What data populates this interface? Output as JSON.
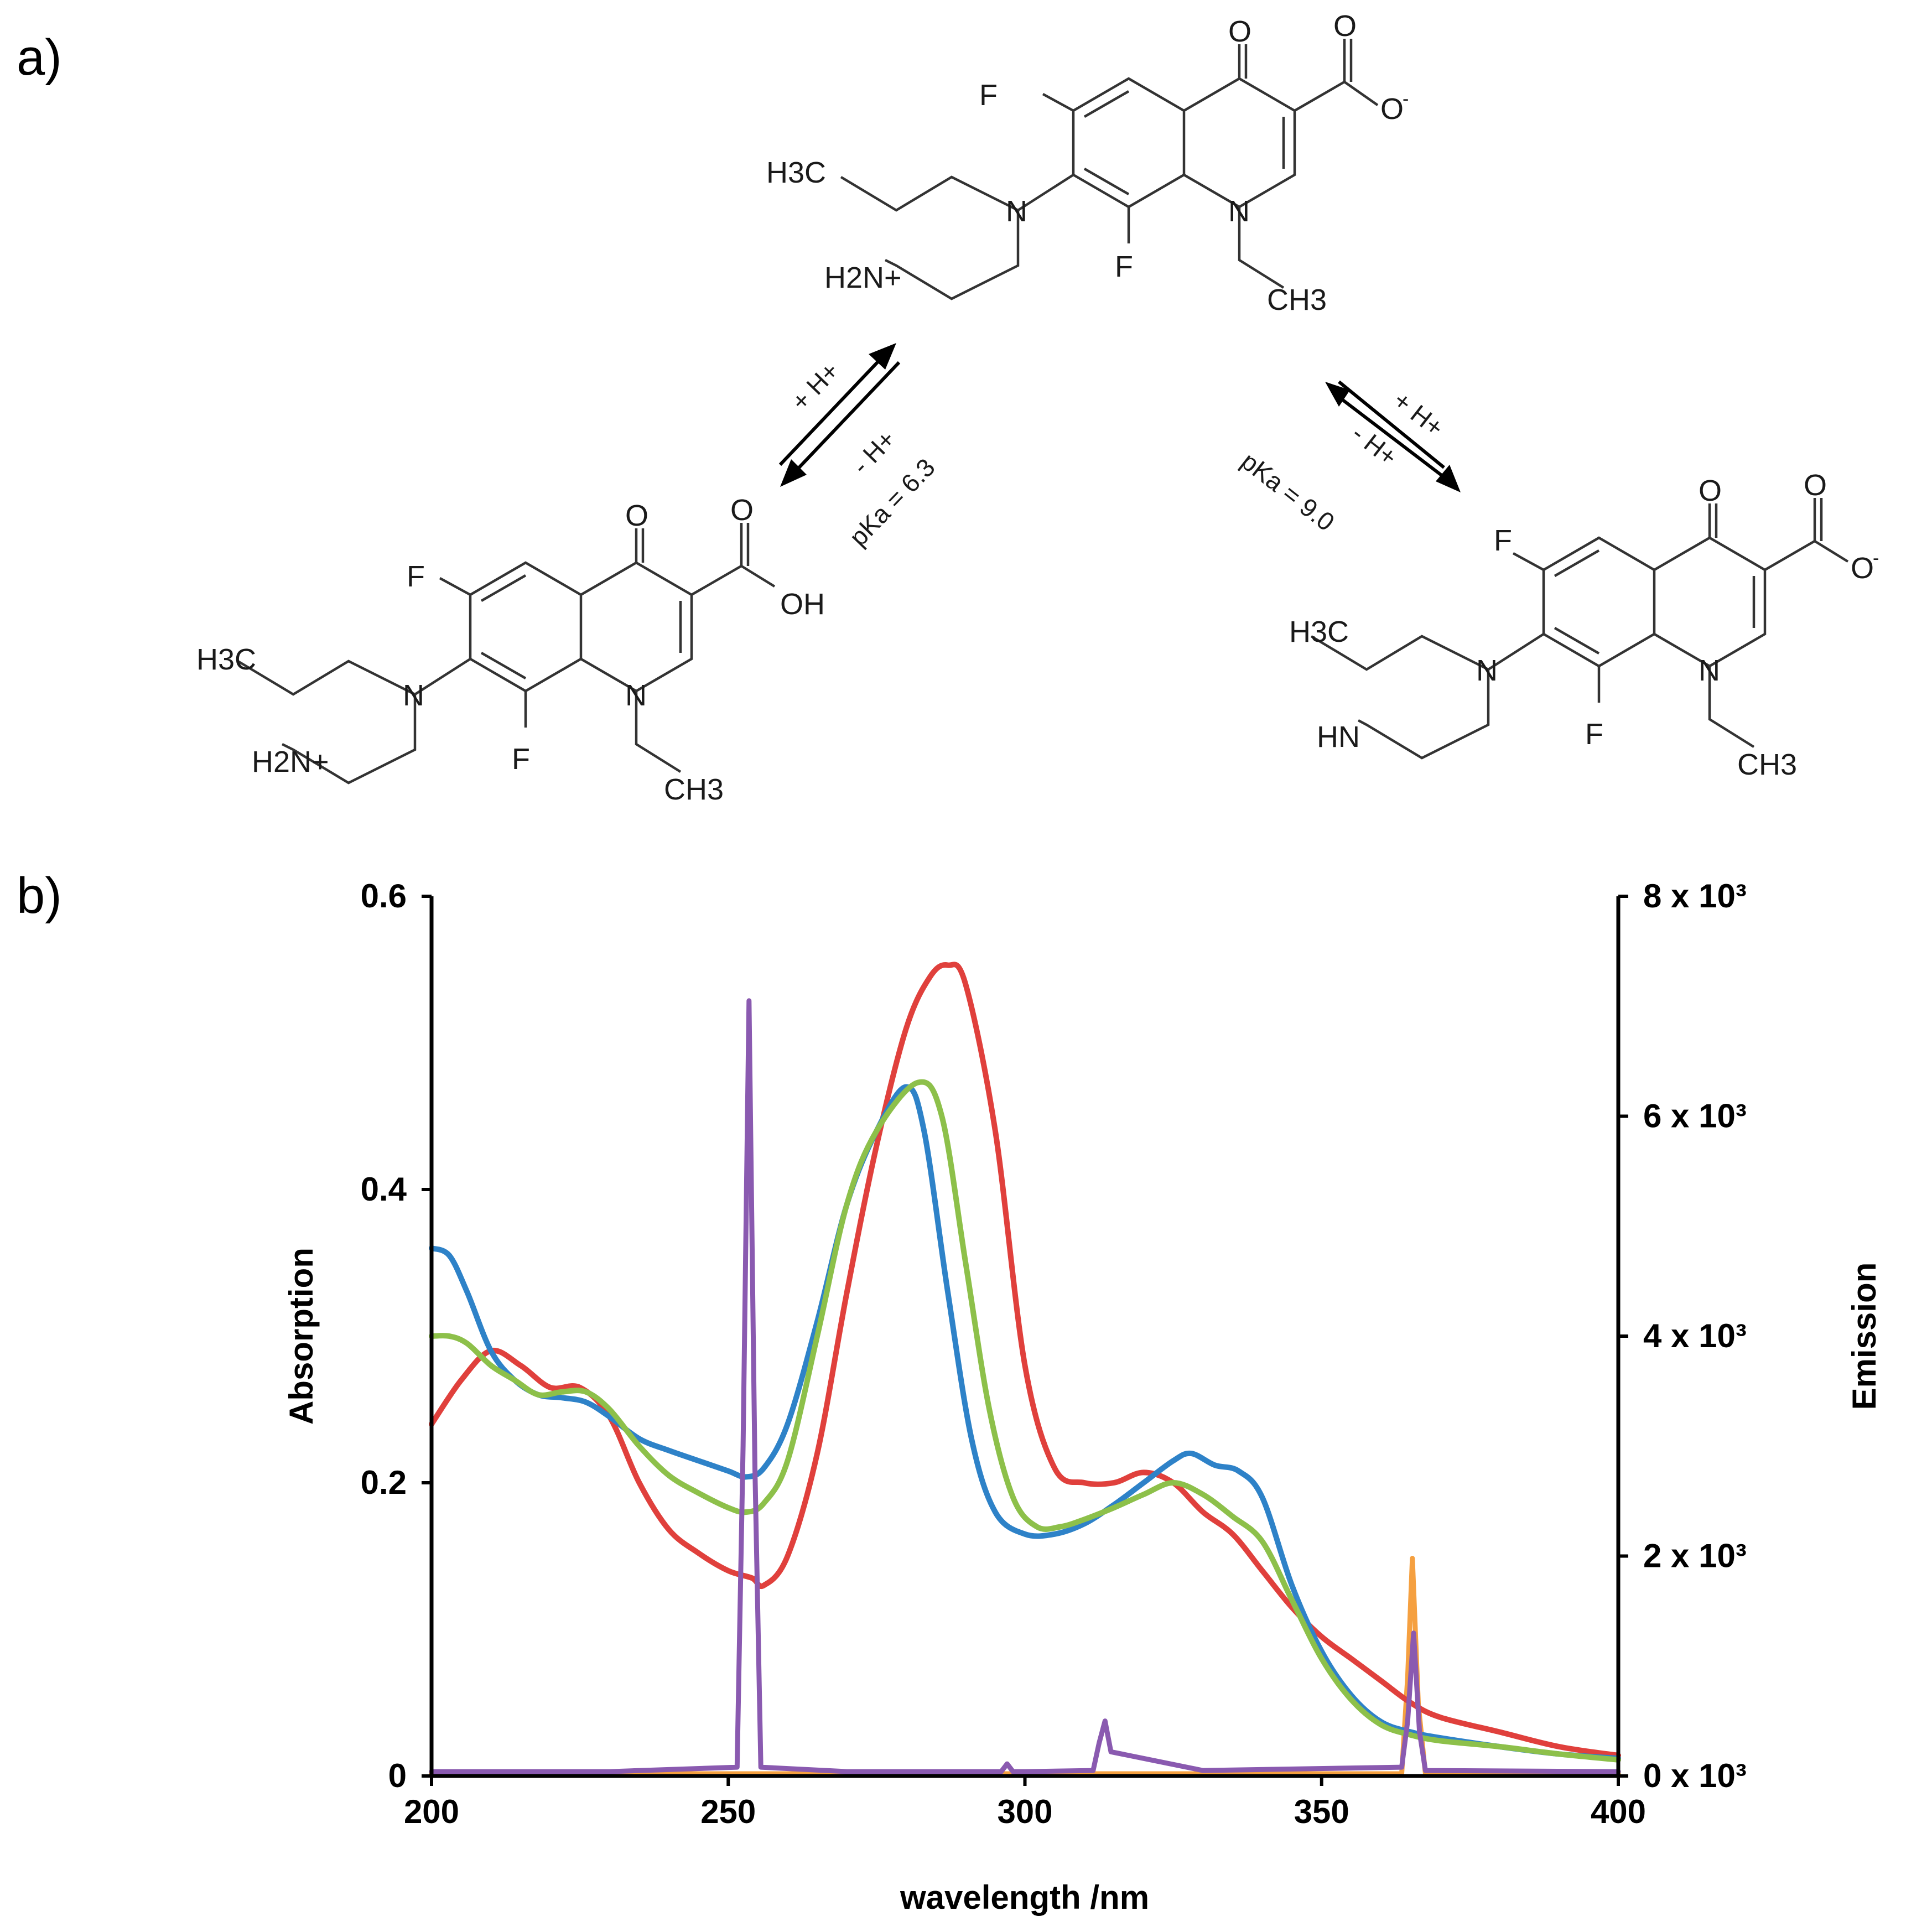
{
  "panel_a_label": "a)",
  "panel_b_label": "b)",
  "structures": {
    "center": {
      "F_top": "F",
      "F_bottom": "F",
      "O_keto": "O",
      "O_carbox": "O",
      "O_minus": "O",
      "charge_minus": "-",
      "N_ring": "N",
      "N_pip": "N",
      "H3C": "H3C",
      "H2N_plus": "H2N+",
      "CH3": "CH3"
    },
    "left": {
      "F_top": "F",
      "F_bottom": "F",
      "O_keto": "O",
      "O_carbox": "O",
      "OH": "OH",
      "N_ring": "N",
      "N_pip": "N",
      "H3C": "H3C",
      "H2N_plus": "H2N+",
      "CH3": "CH3"
    },
    "right": {
      "F_top": "F",
      "F_bottom": "F",
      "O_keto": "O",
      "O_carbox": "O",
      "O_minus": "O",
      "charge_minus": "-",
      "N_ring": "N",
      "N_pip": "N",
      "H3C": "H3C",
      "HN": "HN",
      "CH3": "CH3"
    }
  },
  "equilibria": [
    {
      "forward": "+ H+",
      "backward": "- H+",
      "pka": "pKa = 6.3"
    },
    {
      "forward": "+ H+",
      "backward": "- H+",
      "pka": "pKa = 9.0"
    }
  ],
  "chart_data": {
    "type": "line",
    "xlabel": "wavelength /nm",
    "ylabel": "Absorption",
    "y2label": "Emission",
    "xlim": [
      200,
      400
    ],
    "ylim": [
      0,
      0.6
    ],
    "y2lim": [
      0,
      8000
    ],
    "x_ticks": [
      "200",
      "250",
      "300",
      "350",
      "400"
    ],
    "y_ticks": [
      "0",
      "0.2",
      "0.4",
      "0.6"
    ],
    "y2_ticks": [
      "0 x 10³",
      "2 x 10³",
      "4 x 10³",
      "6 x 10³",
      "8 x 10³"
    ],
    "grid": false,
    "colors": {
      "blue": "#2e82c8",
      "red": "#e0403c",
      "green": "#8dc04a",
      "purple": "#8a5ab0",
      "orange": "#f5a040"
    },
    "series": [
      {
        "color": "blue",
        "axis": "left",
        "x": [
          200,
          203,
          206,
          210,
          214,
          218,
          222,
          226,
          230,
          235,
          240,
          245,
          250,
          253,
          256,
          260,
          265,
          270,
          275,
          280,
          283,
          287,
          291,
          295,
          300,
          305,
          310,
          315,
          320,
          325,
          328,
          332,
          336,
          340,
          345,
          350,
          355,
          360,
          365,
          370,
          380,
          390,
          400
        ],
        "y": [
          0.36,
          0.355,
          0.33,
          0.29,
          0.27,
          0.26,
          0.258,
          0.255,
          0.245,
          0.23,
          0.222,
          0.215,
          0.208,
          0.204,
          0.21,
          0.24,
          0.31,
          0.39,
          0.44,
          0.47,
          0.44,
          0.33,
          0.23,
          0.18,
          0.165,
          0.165,
          0.172,
          0.185,
          0.2,
          0.215,
          0.22,
          0.212,
          0.208,
          0.19,
          0.13,
          0.085,
          0.055,
          0.037,
          0.03,
          0.026,
          0.02,
          0.015,
          0.012
        ]
      },
      {
        "color": "red",
        "axis": "left",
        "x": [
          200,
          205,
          210,
          215,
          220,
          225,
          230,
          235,
          240,
          245,
          250,
          254,
          256,
          260,
          265,
          270,
          275,
          280,
          284,
          287,
          290,
          295,
          300,
          305,
          310,
          315,
          320,
          325,
          330,
          335,
          340,
          345,
          350,
          355,
          360,
          365,
          370,
          380,
          390,
          400
        ],
        "y": [
          0.24,
          0.27,
          0.29,
          0.28,
          0.265,
          0.265,
          0.245,
          0.2,
          0.168,
          0.152,
          0.14,
          0.135,
          0.13,
          0.15,
          0.22,
          0.33,
          0.43,
          0.51,
          0.545,
          0.553,
          0.54,
          0.44,
          0.28,
          0.21,
          0.2,
          0.2,
          0.207,
          0.2,
          0.18,
          0.165,
          0.14,
          0.115,
          0.095,
          0.08,
          0.065,
          0.05,
          0.04,
          0.03,
          0.02,
          0.014
        ]
      },
      {
        "color": "green",
        "axis": "left",
        "x": [
          200,
          203,
          206,
          210,
          214,
          218,
          222,
          226,
          230,
          235,
          240,
          245,
          250,
          253,
          256,
          260,
          265,
          270,
          275,
          282,
          286,
          290,
          294,
          298,
          302,
          306,
          310,
          315,
          320,
          325,
          330,
          335,
          340,
          345,
          350,
          355,
          360,
          365,
          370,
          380,
          390,
          400
        ],
        "y": [
          0.3,
          0.3,
          0.295,
          0.28,
          0.27,
          0.26,
          0.262,
          0.262,
          0.25,
          0.225,
          0.205,
          0.193,
          0.183,
          0.18,
          0.186,
          0.215,
          0.3,
          0.39,
          0.44,
          0.473,
          0.45,
          0.35,
          0.25,
          0.19,
          0.17,
          0.17,
          0.175,
          0.183,
          0.192,
          0.2,
          0.192,
          0.177,
          0.16,
          0.12,
          0.08,
          0.052,
          0.035,
          0.028,
          0.024,
          0.02,
          0.015,
          0.011
        ]
      },
      {
        "color": "purple",
        "axis": "right",
        "x": [
          200,
          230,
          251.5,
          252.5,
          253.5,
          254.5,
          255.5,
          270,
          296,
          297,
          298,
          300,
          311.5,
          312.5,
          313.5,
          314.5,
          330,
          363.5,
          364.5,
          365.5,
          366.5,
          367.5,
          400
        ],
        "y": [
          40,
          40,
          80,
          3000,
          7050,
          2800,
          80,
          40,
          40,
          110,
          40,
          40,
          50,
          300,
          500,
          220,
          50,
          80,
          500,
          1300,
          400,
          50,
          40
        ]
      },
      {
        "color": "orange",
        "axis": "right",
        "x": [
          200,
          363.5,
          364.5,
          365.3,
          366.3,
          367.5,
          400
        ],
        "y": [
          20,
          20,
          900,
          1980,
          650,
          20,
          20
        ]
      }
    ]
  }
}
